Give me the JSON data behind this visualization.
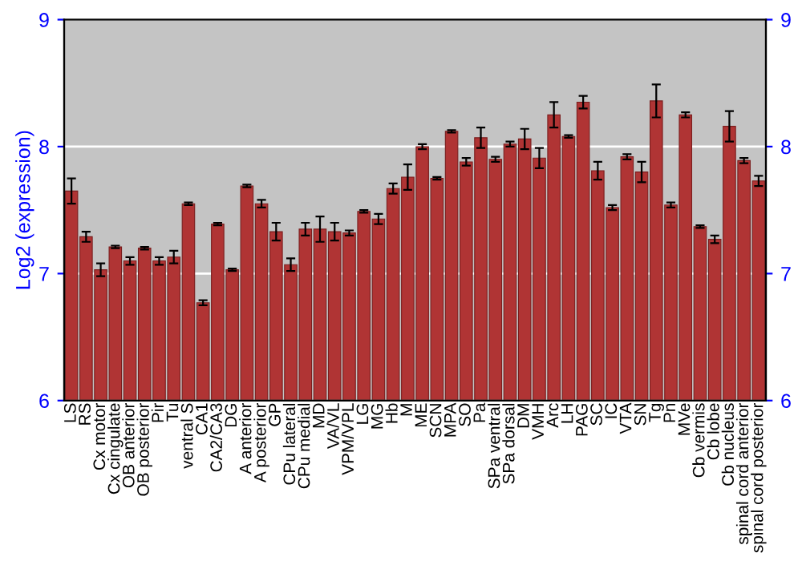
{
  "chart_data": {
    "type": "bar",
    "ylabel": "Log2 (expression)",
    "categories": [
      "LS",
      "RS",
      "Cx motor",
      "Cx cingulate",
      "OB anterior",
      "OB posterior",
      "Pir",
      "Tu",
      "ventral S",
      "CA1",
      "CA2/CA3",
      "DG",
      "A anterior",
      "A posterior",
      "GP",
      "CPu lateral",
      "CPu medial",
      "MD",
      "VA/VL",
      "VPM/VPL",
      "LG",
      "MG",
      "Hb",
      "M",
      "ME",
      "SCN",
      "MPA",
      "SO",
      "Pa",
      "SPa ventral",
      "SPa dorsal",
      "DM",
      "VMH",
      "Arc",
      "LH",
      "PAG",
      "SC",
      "IC",
      "VTA",
      "SN",
      "Tg",
      "Pn",
      "MVe",
      "Cb vermis",
      "Cb lobe",
      "Cb nucleus",
      "spinal cord anterior",
      "spinal cord posterior"
    ],
    "values": [
      7.65,
      7.29,
      7.03,
      7.21,
      7.1,
      7.2,
      7.1,
      7.13,
      7.55,
      6.77,
      7.39,
      7.03,
      7.69,
      7.55,
      7.33,
      7.07,
      7.35,
      7.35,
      7.33,
      7.32,
      7.49,
      7.43,
      7.67,
      7.76,
      8.0,
      7.75,
      8.12,
      7.88,
      8.07,
      7.9,
      8.02,
      8.06,
      7.91,
      8.25,
      8.08,
      8.35,
      7.81,
      7.52,
      7.92,
      7.8,
      8.36,
      7.54,
      8.25,
      7.37,
      7.27,
      8.16,
      7.89,
      7.73
    ],
    "errors": [
      0.1,
      0.04,
      0.05,
      0.01,
      0.03,
      0.01,
      0.03,
      0.05,
      0.01,
      0.02,
      0.01,
      0.01,
      0.01,
      0.03,
      0.07,
      0.05,
      0.05,
      0.1,
      0.07,
      0.02,
      0.01,
      0.04,
      0.04,
      0.1,
      0.02,
      0.01,
      0.01,
      0.03,
      0.08,
      0.02,
      0.02,
      0.08,
      0.08,
      0.1,
      0.01,
      0.05,
      0.07,
      0.02,
      0.02,
      0.08,
      0.13,
      0.02,
      0.02,
      0.01,
      0.03,
      0.12,
      0.02,
      0.04
    ],
    "color": "#b03434",
    "ylim": [
      6,
      9
    ],
    "yticks": [
      6,
      7,
      8,
      9
    ],
    "y2lim": [
      6,
      9
    ],
    "y2ticks": [
      6,
      7,
      8,
      9
    ],
    "grid": "y"
  }
}
